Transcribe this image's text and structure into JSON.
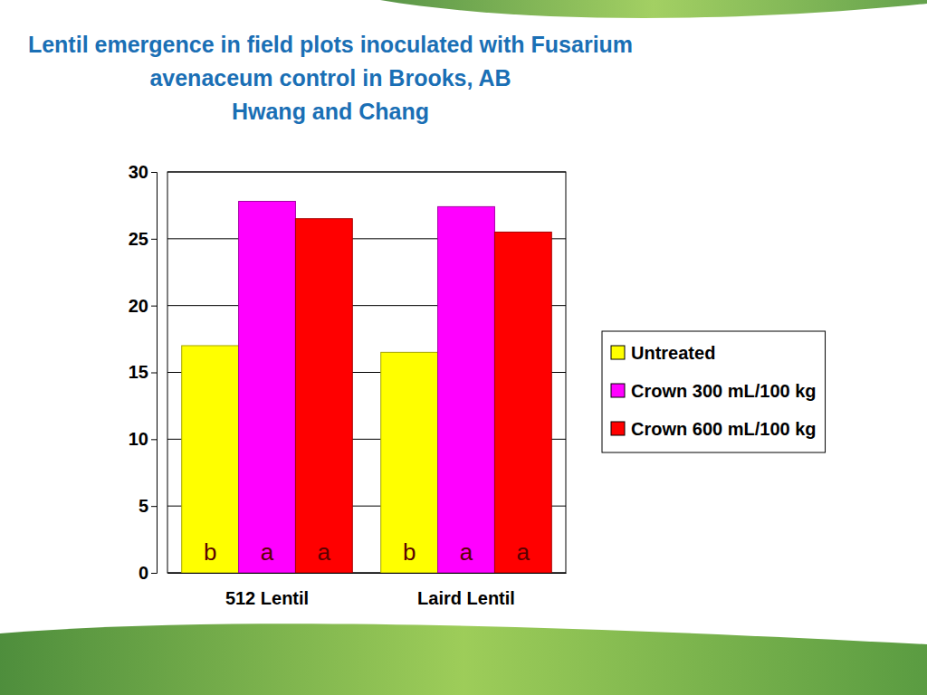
{
  "chart_data": {
    "type": "bar",
    "title": "Lentil emergence in field plots inoculated with Fusarium avenaceum control in Brooks, AB",
    "subtitle": "Hwang and Chang",
    "categories": [
      "512 Lentil",
      "Laird Lentil"
    ],
    "series": [
      {
        "name": "Untreated",
        "color": "#ffff00",
        "values": [
          17,
          16.5
        ],
        "letters": [
          "b",
          "b"
        ]
      },
      {
        "name": "Crown 300 mL/100 kg",
        "color": "#ff00ff",
        "values": [
          27.8,
          27.4
        ],
        "letters": [
          "a",
          "a"
        ]
      },
      {
        "name": "Crown 600 mL/100 kg",
        "color": "#ff0000",
        "values": [
          26.5,
          25.5
        ],
        "letters": [
          "a",
          "a"
        ]
      }
    ],
    "ylim": [
      0,
      30
    ],
    "yticks": [
      0,
      5,
      10,
      15,
      20,
      25,
      30
    ],
    "grid": true,
    "legend": "right"
  }
}
